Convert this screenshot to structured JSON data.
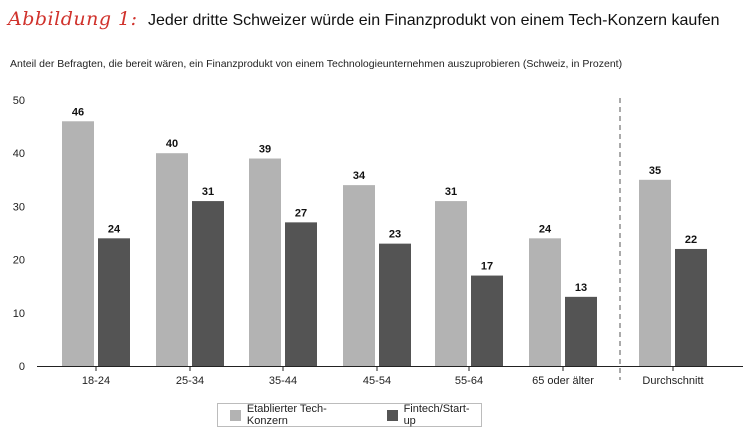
{
  "figure_label": "Abbildung 1:",
  "title": "Jeder dritte Schweizer würde ein Finanzprodukt von einem Tech-Konzern kaufen",
  "subtitle": "Anteil der Befragten, die bereit wären, ein Finanzprodukt von einem Technologieunternehmen auszuprobieren (Schweiz, in Prozent)",
  "chart_data": {
    "type": "bar",
    "categories": [
      "18-24",
      "25-34",
      "35-44",
      "45-54",
      "55-64",
      "65 oder älter",
      "Durchschnitt"
    ],
    "series": [
      {
        "name": "Etablierter Tech-Konzern",
        "values": [
          46,
          40,
          39,
          34,
          31,
          24,
          35
        ],
        "color": "#b3b3b3"
      },
      {
        "name": "Fintech/Start-up",
        "values": [
          24,
          31,
          27,
          23,
          17,
          13,
          22
        ],
        "color": "#545454"
      }
    ],
    "yticks": [
      0,
      10,
      20,
      30,
      40,
      50
    ],
    "ylim": [
      0,
      50
    ],
    "grid": false,
    "legend_position": "bottom-center",
    "separator_before_category": "Durchschnitt"
  }
}
